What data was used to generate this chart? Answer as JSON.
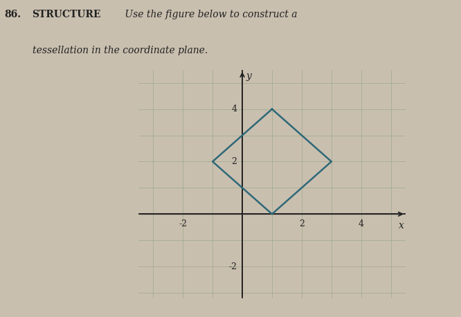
{
  "fig_bg_color": "#c9bfaf",
  "plot_bg_color": "#ddd8cc",
  "grid_color": "#9aaa8a",
  "axis_color": "#222222",
  "diamond_color": "#2e6878",
  "diamond_vertices_x": [
    1,
    3,
    1,
    -1,
    1
  ],
  "diamond_vertices_y": [
    4,
    2,
    0,
    2,
    4
  ],
  "xlim": [
    -3.5,
    5.5
  ],
  "ylim": [
    -3.2,
    5.5
  ],
  "xtick_vals": [
    -2,
    2,
    4
  ],
  "ytick_vals": [
    -2,
    2,
    4
  ],
  "xlabel": "x",
  "ylabel": "y",
  "diamond_linewidth": 1.8,
  "grid_linewidth": 0.5,
  "axis_linewidth": 1.3,
  "tick_fontsize": 9,
  "label_fontsize": 10,
  "text_color": "#222222",
  "header_number": "86.",
  "header_bold": "STRUCTURE",
  "header_normal": " Use the figure below to construct a",
  "header_line2": "tessellation in the coordinate plane."
}
